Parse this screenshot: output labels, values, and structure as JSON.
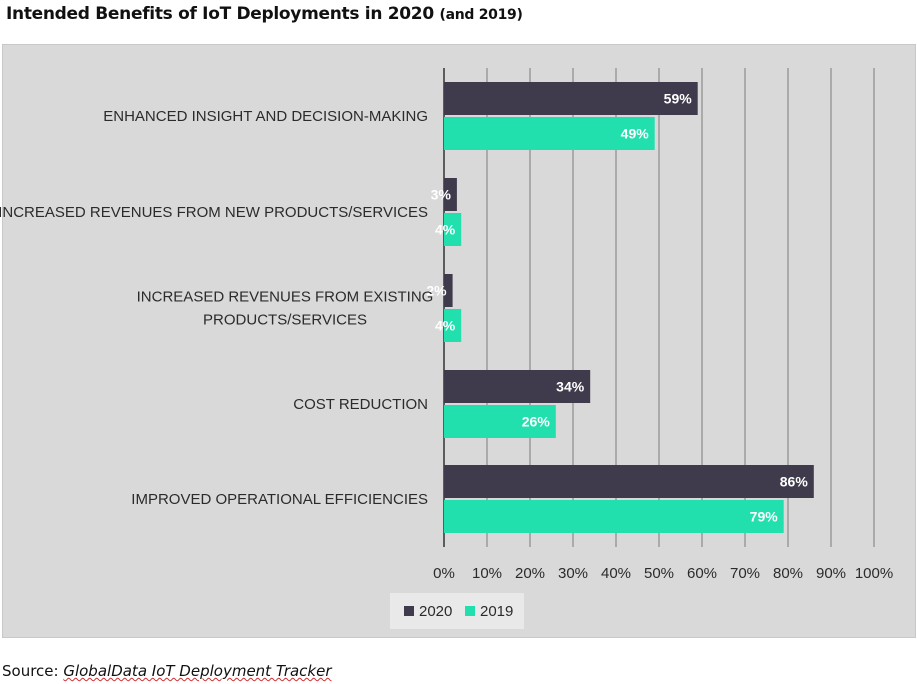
{
  "title": {
    "main": "Intended Benefits of IoT Deployments in 2020 ",
    "sub": "(and 2019)"
  },
  "source": {
    "prefix": "Source: ",
    "text": "GlobalData IoT Deployment Tracker"
  },
  "colors": {
    "series_2020": "#3f3b4c",
    "series_2019": "#21e0ad",
    "plot_background": "#d9d9d9",
    "gridline": "#7a7a7a"
  },
  "chart_data": {
    "type": "bar",
    "orientation": "horizontal",
    "title": "Intended Benefits of IoT Deployments in 2020 (and 2019)",
    "xlabel": "",
    "ylabel": "",
    "xlim": [
      0,
      100
    ],
    "x_ticks": [
      "0%",
      "10%",
      "20%",
      "30%",
      "40%",
      "50%",
      "60%",
      "70%",
      "80%",
      "90%",
      "100%"
    ],
    "grid": true,
    "legend_position": "bottom",
    "categories": [
      [
        "ENHANCED INSIGHT AND DECISION-MAKING"
      ],
      [
        "INCREASED REVENUES  FROM NEW PRODUCTS/SERVICES"
      ],
      [
        "INCREASED REVENUES  FROM EXISTING",
        "PRODUCTS/SERVICES"
      ],
      [
        "COST REDUCTION"
      ],
      [
        "IMPROVED OPERATIONAL EFFICIENCIES"
      ]
    ],
    "series": [
      {
        "name": "2020",
        "values": [
          59,
          3,
          2,
          34,
          86
        ],
        "labels": [
          "59%",
          "3%",
          "2%",
          "34%",
          "86%"
        ]
      },
      {
        "name": "2019",
        "values": [
          49,
          4,
          4,
          26,
          79
        ],
        "labels": [
          "49%",
          "4%",
          "4%",
          "26%",
          "79%"
        ]
      }
    ]
  }
}
